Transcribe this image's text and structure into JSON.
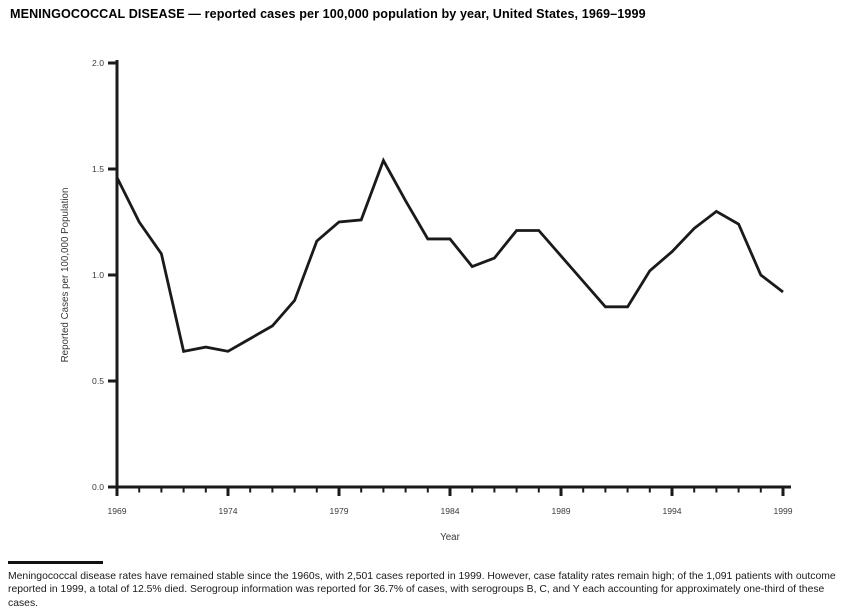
{
  "page": {
    "title": "MENINGOCOCCAL DISEASE — reported cases per 100,000 population by year, United States, 1969–1999",
    "footnote": "Meningococcal disease rates have remained stable since the 1960s, with 2,501 cases reported in 1999. However, case fatality rates remain high; of the 1,091 patients with outcome reported in 1999, a total of 12.5% died. Serogroup information was reported for 36.7% of cases, with serogroups B, C, and Y each accounting for approximately one-third of these cases."
  },
  "chart_data": {
    "type": "line",
    "title": "MENINGOCOCCAL DISEASE — reported cases per 100,000 population by year, United States, 1969–1999",
    "xlabel": "Year",
    "ylabel": "Reported Cases per 100,000 Population",
    "x": [
      1969,
      1970,
      1971,
      1972,
      1973,
      1974,
      1975,
      1976,
      1977,
      1978,
      1979,
      1980,
      1981,
      1982,
      1983,
      1984,
      1985,
      1986,
      1987,
      1988,
      1989,
      1990,
      1991,
      1992,
      1993,
      1994,
      1995,
      1996,
      1997,
      1998,
      1999
    ],
    "series": [
      {
        "name": "Reported cases per 100,000 population",
        "values": [
          1.46,
          1.25,
          1.1,
          0.64,
          0.66,
          0.64,
          0.7,
          0.76,
          0.88,
          1.16,
          1.25,
          1.26,
          1.54,
          1.35,
          1.17,
          1.17,
          1.04,
          1.08,
          1.21,
          1.21,
          1.09,
          0.97,
          0.85,
          0.85,
          1.02,
          1.11,
          1.22,
          1.3,
          1.24,
          1.0,
          0.92
        ]
      }
    ],
    "xlim": [
      1969,
      1999
    ],
    "ylim": [
      0.0,
      2.0
    ],
    "yticks": [
      0.0,
      0.5,
      1.0,
      1.5,
      2.0
    ],
    "ytick_labels": [
      "0.0",
      "0.5",
      "1.0",
      "1.5",
      "2.0"
    ],
    "xtick_labels": [
      "1969",
      "1974",
      "1979",
      "1984",
      "1989",
      "1994",
      "1999"
    ],
    "minor_xtick_interval_years": 1,
    "major_xtick_interval_years": 5,
    "grid": false,
    "legend": "none",
    "line_color": "#1a1a1a",
    "axis_color": "#1a1a1a",
    "tick_label_color": "#3a3a3a"
  }
}
